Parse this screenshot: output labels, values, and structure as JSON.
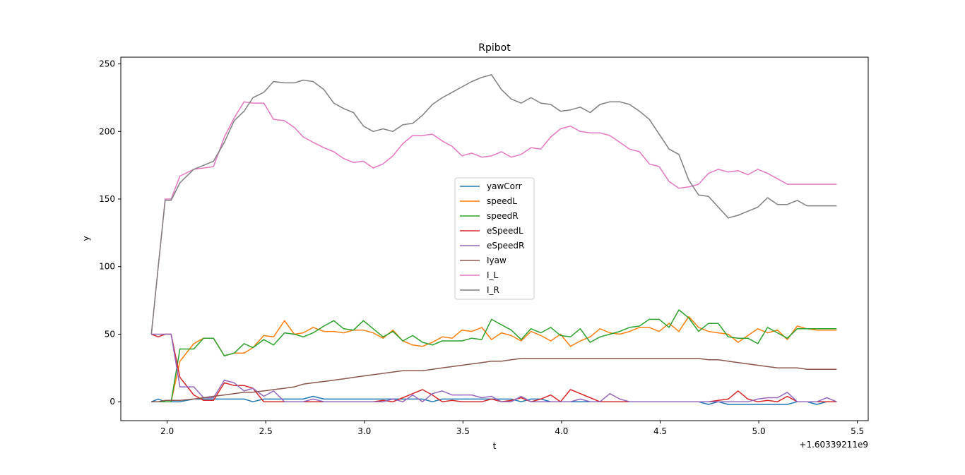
{
  "chart_data": {
    "type": "line",
    "title": "Rpibot",
    "xlabel": "t",
    "ylabel": "y",
    "x_offset_label": "+1.60339211e9",
    "xlim": [
      1.765,
      5.555
    ],
    "ylim": [
      -14,
      255
    ],
    "xticks": [
      2.0,
      2.5,
      3.0,
      3.5,
      4.0,
      4.5,
      5.0,
      5.5
    ],
    "xtick_labels": [
      "2.0",
      "2.5",
      "3.0",
      "3.5",
      "4.0",
      "4.5",
      "5.0",
      "5.5"
    ],
    "yticks": [
      0,
      50,
      100,
      150,
      200,
      250
    ],
    "ytick_labels": [
      "0",
      "50",
      "100",
      "150",
      "200",
      "250"
    ],
    "grid": false,
    "legend_position": "center",
    "x": [
      1.92,
      1.955,
      1.99,
      2.02,
      2.065,
      2.135,
      2.185,
      2.235,
      2.29,
      2.34,
      2.39,
      2.435,
      2.49,
      2.54,
      2.595,
      2.645,
      2.69,
      2.74,
      2.795,
      2.845,
      2.895,
      2.945,
      2.995,
      3.045,
      3.095,
      3.145,
      3.195,
      3.245,
      3.295,
      3.345,
      3.395,
      3.445,
      3.495,
      3.545,
      3.595,
      3.645,
      3.695,
      3.745,
      3.795,
      3.845,
      3.895,
      3.945,
      3.995,
      4.045,
      4.095,
      4.145,
      4.195,
      4.245,
      4.295,
      4.345,
      4.395,
      4.445,
      4.495,
      4.545,
      4.595,
      4.645,
      4.695,
      4.745,
      4.795,
      4.845,
      4.895,
      4.945,
      4.995,
      5.045,
      5.095,
      5.145,
      5.195,
      5.245,
      5.295,
      5.345,
      5.395
    ],
    "series": [
      {
        "name": "yawCorr",
        "color": "#1f77b4",
        "values": [
          0,
          2,
          0,
          0,
          0,
          2,
          2,
          2,
          2,
          2,
          2,
          0,
          2,
          2,
          2,
          2,
          2,
          4,
          2,
          2,
          2,
          2,
          2,
          2,
          2,
          2,
          2,
          2,
          2,
          0,
          2,
          2,
          2,
          2,
          2,
          2,
          2,
          2,
          0,
          2,
          2,
          0,
          0,
          0,
          0,
          0,
          0,
          0,
          0,
          0,
          0,
          0,
          0,
          0,
          0,
          0,
          0,
          -2,
          0,
          -2,
          -2,
          -2,
          -2,
          -2,
          -2,
          -2,
          0,
          0,
          -2,
          0,
          0
        ]
      },
      {
        "name": "speedL",
        "color": "#ff7f0e",
        "values": [
          0,
          0,
          0,
          0,
          30,
          43,
          47,
          47,
          34,
          36,
          36,
          40,
          49,
          48,
          60,
          50,
          51,
          55,
          52,
          52,
          51,
          53,
          53,
          51,
          47,
          53,
          45,
          42,
          41,
          44,
          48,
          47,
          53,
          52,
          55,
          46,
          51,
          49,
          45,
          52,
          49,
          45,
          50,
          41,
          45,
          48,
          54,
          51,
          50,
          52,
          55,
          55,
          52,
          58,
          52,
          63,
          55,
          52,
          51,
          50,
          44,
          49,
          54,
          51,
          53,
          46,
          56,
          54,
          53,
          53,
          53
        ]
      },
      {
        "name": "speedR",
        "color": "#2ca02c",
        "values": [
          0,
          0,
          0,
          0,
          39,
          39,
          47,
          47,
          34,
          36,
          43,
          40,
          46,
          42,
          51,
          50,
          48,
          51,
          56,
          60,
          54,
          53,
          60,
          54,
          48,
          52,
          45,
          49,
          44,
          42,
          45,
          45,
          45,
          47,
          46,
          61,
          57,
          53,
          46,
          54,
          51,
          55,
          49,
          48,
          54,
          44,
          48,
          50,
          52,
          55,
          56,
          61,
          61,
          55,
          68,
          62,
          52,
          58,
          58,
          48,
          47,
          47,
          43,
          55,
          51,
          47,
          54,
          54,
          54,
          54,
          54
        ]
      },
      {
        "name": "eSpeedL",
        "color": "#d62728",
        "values": [
          50,
          48,
          50,
          50,
          18,
          5,
          1,
          1,
          14,
          12,
          12,
          10,
          0,
          0,
          0,
          0,
          0,
          0,
          0,
          0,
          0,
          0,
          0,
          0,
          1,
          0,
          3,
          6,
          9,
          5,
          0,
          1,
          0,
          0,
          0,
          2,
          0,
          1,
          3,
          0,
          2,
          5,
          0,
          9,
          6,
          3,
          0,
          0,
          0,
          0,
          0,
          0,
          0,
          0,
          0,
          0,
          0,
          0,
          1,
          2,
          8,
          2,
          0,
          1,
          0,
          4,
          0,
          0,
          0,
          0,
          0
        ]
      },
      {
        "name": "eSpeedR",
        "color": "#9467bd",
        "values": [
          50,
          50,
          50,
          50,
          11,
          11,
          3,
          3,
          16,
          14,
          8,
          10,
          4,
          8,
          0,
          0,
          0,
          2,
          0,
          0,
          0,
          0,
          0,
          0,
          0,
          2,
          0,
          5,
          0,
          6,
          8,
          5,
          5,
          5,
          3,
          4,
          0,
          0,
          4,
          0,
          0,
          0,
          0,
          0,
          2,
          0,
          0,
          6,
          2,
          0,
          0,
          0,
          0,
          0,
          0,
          0,
          0,
          0,
          0,
          0,
          0,
          0,
          2,
          3,
          3,
          7,
          0,
          0,
          0,
          3,
          0
        ]
      },
      {
        "name": "Iyaw",
        "color": "#8c564b",
        "values": [
          0,
          0,
          1,
          1,
          1,
          2,
          3,
          4,
          5,
          6,
          7,
          7,
          8,
          9,
          10,
          11,
          13,
          14,
          15,
          16,
          17,
          18,
          19,
          20,
          21,
          22,
          23,
          23,
          23,
          24,
          25,
          26,
          27,
          28,
          29,
          30,
          30,
          31,
          32,
          32,
          32,
          32,
          32,
          32,
          32,
          32,
          32,
          32,
          32,
          32,
          32,
          32,
          32,
          32,
          32,
          32,
          32,
          31,
          31,
          30,
          29,
          28,
          27,
          26,
          25,
          25,
          25,
          24,
          24,
          24,
          24
        ]
      },
      {
        "name": "I_L",
        "color": "#e377c2",
        "values": [
          50,
          100,
          150,
          150,
          167,
          172,
          173,
          174,
          196,
          210,
          222,
          221,
          221,
          209,
          208,
          203,
          196,
          192,
          188,
          185,
          180,
          177,
          178,
          173,
          176,
          182,
          191,
          197,
          197,
          198,
          193,
          189,
          182,
          184,
          181,
          182,
          185,
          181,
          183,
          188,
          187,
          196,
          202,
          204,
          200,
          199,
          199,
          197,
          192,
          187,
          185,
          176,
          174,
          163,
          158,
          159,
          161,
          169,
          172,
          170,
          171,
          168,
          172,
          169,
          165,
          161,
          161,
          161,
          161,
          161,
          161
        ]
      },
      {
        "name": "I_R",
        "color": "#7f7f7f",
        "values": [
          50,
          100,
          149,
          149,
          162,
          172,
          175,
          178,
          192,
          208,
          215,
          225,
          229,
          237,
          236,
          236,
          238,
          237,
          231,
          221,
          217,
          214,
          204,
          200,
          202,
          200,
          205,
          206,
          212,
          220,
          225,
          229,
          233,
          237,
          240,
          242,
          231,
          224,
          221,
          225,
          221,
          220,
          215,
          216,
          218,
          214,
          220,
          222,
          222,
          220,
          215,
          209,
          198,
          187,
          183,
          164,
          153,
          152,
          144,
          136,
          138,
          141,
          144,
          151,
          146,
          146,
          149,
          145,
          145,
          145,
          145
        ]
      }
    ]
  }
}
